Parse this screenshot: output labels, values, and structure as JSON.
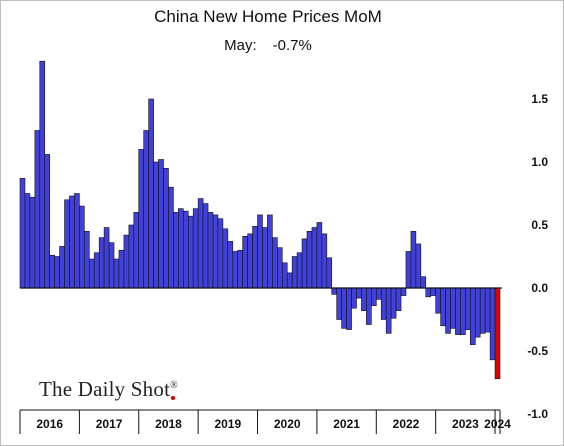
{
  "colors": {
    "bar": "#4141d9",
    "bar_stroke": "#111111",
    "highlight": "#e00000"
  },
  "branding": {
    "text": "The Daily Shot",
    "mark": "®"
  },
  "chart_data": {
    "type": "bar",
    "title": "China New Home Prices MoM",
    "subtitle_label": "May:",
    "subtitle_value": "-0.7%",
    "x_labels": [
      "2016",
      "2017",
      "2018",
      "2019",
      "2020",
      "2021",
      "2022",
      "2023",
      "2024"
    ],
    "y_ticks": [
      "1.5",
      "1.0",
      "0.5",
      "0.0",
      "-0.5",
      "-1.0"
    ],
    "ylim": [
      -1.0,
      1.75
    ],
    "grid": false,
    "highlight_last": true,
    "start_period": "2016-01",
    "end_period": "2024-05",
    "values": [
      0.87,
      0.75,
      0.72,
      1.25,
      1.8,
      1.06,
      0.26,
      0.25,
      0.33,
      0.7,
      0.73,
      0.75,
      0.65,
      0.45,
      0.23,
      0.28,
      0.4,
      0.48,
      0.36,
      0.23,
      0.3,
      0.42,
      0.5,
      0.6,
      1.1,
      1.25,
      1.5,
      1.0,
      1.02,
      0.95,
      0.8,
      0.6,
      0.63,
      0.61,
      0.57,
      0.63,
      0.71,
      0.67,
      0.6,
      0.58,
      0.55,
      0.47,
      0.37,
      0.29,
      0.3,
      0.41,
      0.43,
      0.49,
      0.58,
      0.48,
      0.58,
      0.4,
      0.32,
      0.2,
      0.12,
      0.25,
      0.28,
      0.39,
      0.45,
      0.48,
      0.52,
      0.43,
      0.24,
      -0.05,
      -0.25,
      -0.32,
      -0.33,
      -0.16,
      -0.08,
      -0.18,
      -0.29,
      -0.14,
      -0.09,
      -0.25,
      -0.36,
      -0.24,
      -0.18,
      -0.06,
      0.29,
      0.45,
      0.35,
      0.09,
      -0.07,
      -0.06,
      -0.2,
      -0.3,
      -0.36,
      -0.32,
      -0.37,
      -0.37,
      -0.33,
      -0.45,
      -0.39,
      -0.36,
      -0.35,
      -0.57,
      -0.72
    ]
  }
}
